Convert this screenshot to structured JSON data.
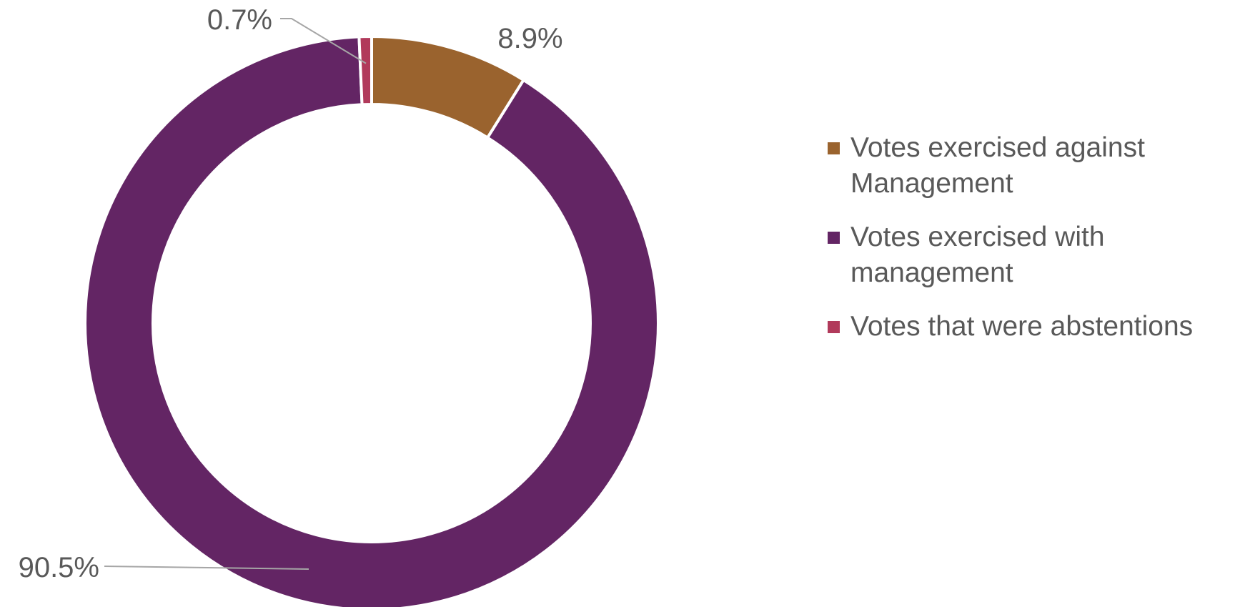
{
  "chart_data": {
    "type": "pie",
    "variant": "doughnut",
    "title": "",
    "series": [
      {
        "categories": [
          "Votes exercised against Management",
          "Votes exercised with management",
          "Votes that were abstentions"
        ],
        "values": [
          8.9,
          90.5,
          0.7
        ],
        "labels": [
          "8.9%",
          "90.5%",
          "0.7%"
        ],
        "colors": [
          "#9A632E",
          "#632564",
          "#B13A5B"
        ]
      }
    ],
    "legend": {
      "position": "right",
      "entries": [
        "Votes exercised against Management",
        "Votes exercised with management",
        "Votes that were abstentions"
      ]
    }
  }
}
